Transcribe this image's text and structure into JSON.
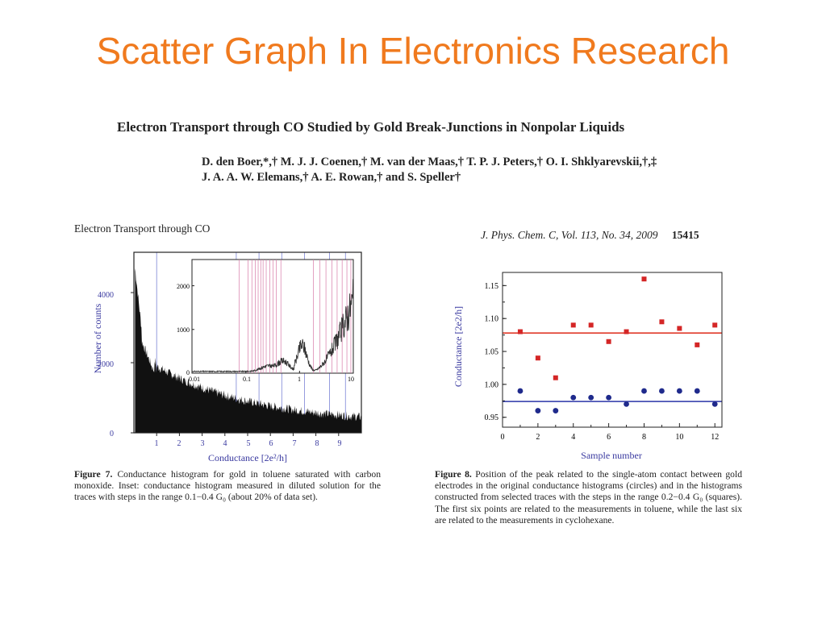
{
  "slide_title": "Scatter Graph In Electronics Research",
  "paper": {
    "title": "Electron Transport through CO Studied by Gold Break-Junctions in Nonpolar Liquids",
    "authors_line1": "D. den Boer,*,† M. J. J. Coenen,† M. van der Maas,† T. P. J. Peters,† O. I. Shklyarevskii,†,‡",
    "authors_line2": "J. A. A. W. Elemans,† A. E. Rowan,† and S. Speller†"
  },
  "running_head_left": "Electron Transport through CO",
  "journal": {
    "citation": "J. Phys. Chem. C, Vol. 113, No. 34, 2009",
    "page": "15415"
  },
  "figure7": {
    "caption_label": "Figure 7.",
    "caption_text": "Conductance histogram for gold in toluene saturated with carbon monoxide. Inset: conductance histogram measured in diluted solution for the traces with steps in the range 0.1−0.4 G₀ (about 20% of data set).",
    "ylabel": "Number of counts",
    "xlabel": "Conductance [2e²/h]",
    "y_ticks": [
      "0",
      "2000",
      "4000"
    ],
    "x_ticks": [
      "1",
      "2",
      "3",
      "4",
      "5",
      "6",
      "7",
      "8",
      "9"
    ],
    "inset_y_ticks": [
      "0",
      "1000",
      "2000"
    ],
    "inset_x_ticks": [
      "0.01",
      "0.1",
      "1",
      "10"
    ],
    "color_axis_label": "#3a3aa0"
  },
  "figure8": {
    "caption_label": "Figure 8.",
    "caption_text": "Position of the peak related to the single-atom contact between gold electrodes in the original conductance histograms (circles) and in the histograms constructed from selected traces with the steps in the range 0.2−0.4 G₀ (squares). The first six points are related to the measurements in toluene, while the last six are related to the measurements in cyclohexane.",
    "color_axis_label": "#3a3aa0"
  },
  "chart_data": [
    {
      "type": "scatter",
      "title": "",
      "xlabel": "Sample number",
      "ylabel": "Conductance [2e2/h]",
      "xlim": [
        0,
        12.4
      ],
      "ylim": [
        0.935,
        1.17
      ],
      "x_ticks": [
        "0",
        "2",
        "4",
        "6",
        "8",
        "10",
        "12"
      ],
      "y_ticks": [
        "0.95",
        "1.00",
        "1.05",
        "1.10",
        "1.15"
      ],
      "series": [
        {
          "marker": "square",
          "color": "#d42626",
          "points": [
            [
              1,
              1.08
            ],
            [
              2,
              1.04
            ],
            [
              3,
              1.01
            ],
            [
              4,
              1.09
            ],
            [
              5,
              1.09
            ],
            [
              6,
              1.065
            ],
            [
              7,
              1.08
            ],
            [
              8,
              1.16
            ],
            [
              9,
              1.095
            ],
            [
              10,
              1.085
            ],
            [
              11,
              1.06
            ],
            [
              12,
              1.09
            ]
          ]
        },
        {
          "marker": "circle",
          "color": "#1f2a8c",
          "points": [
            [
              1,
              0.99
            ],
            [
              2,
              0.96
            ],
            [
              3,
              0.96
            ],
            [
              4,
              0.98
            ],
            [
              5,
              0.98
            ],
            [
              6,
              0.98
            ],
            [
              7,
              0.97
            ],
            [
              8,
              0.99
            ],
            [
              9,
              0.99
            ],
            [
              10,
              0.99
            ],
            [
              11,
              0.99
            ],
            [
              12,
              0.97
            ]
          ]
        }
      ],
      "reference_lines": [
        {
          "y": 1.078,
          "color": "#e03a2a"
        },
        {
          "y": 0.974,
          "color": "#2a35a8"
        }
      ]
    }
  ]
}
